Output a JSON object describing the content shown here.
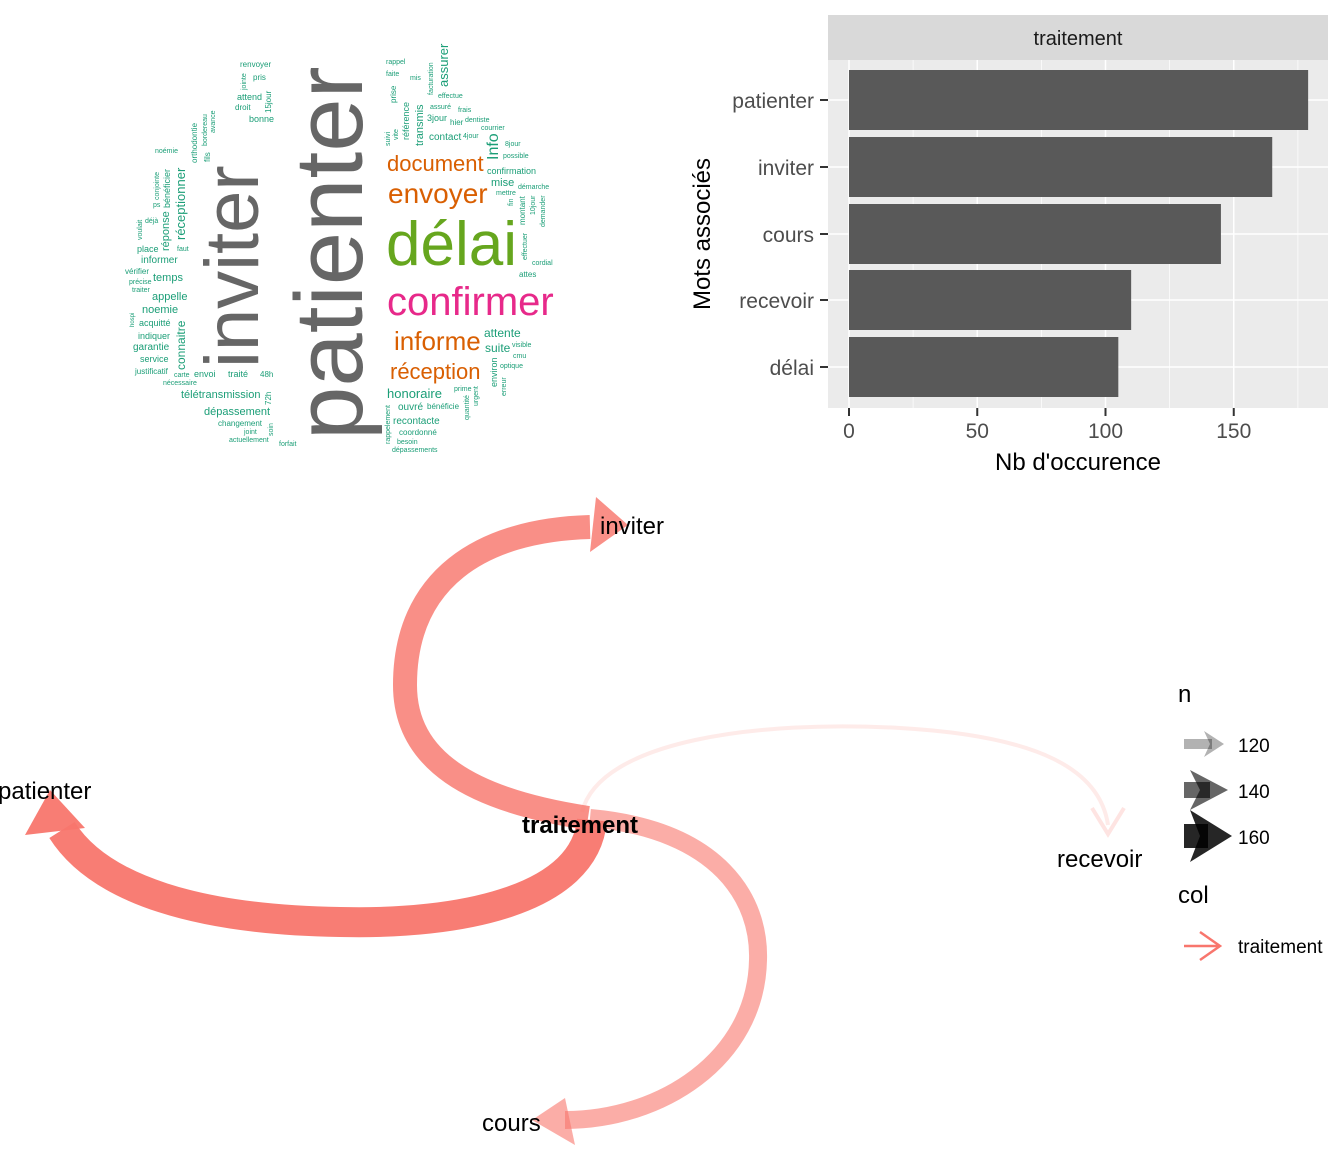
{
  "colors": {
    "teal": "#1b9e77",
    "orange": "#d95f02",
    "green": "#66a61e",
    "pink": "#e7298a",
    "gray": "#666666",
    "bar": "#595959",
    "edge": "#F8766D"
  },
  "wordcloud": {
    "words": [
      {
        "t": "patienter",
        "c": "gray"
      },
      {
        "t": "inviter",
        "c": "gray"
      },
      {
        "t": "délai",
        "c": "green"
      },
      {
        "t": "confirmer",
        "c": "pink"
      },
      {
        "t": "envoyer",
        "c": "orange"
      },
      {
        "t": "document",
        "c": "orange"
      },
      {
        "t": "informe",
        "c": "orange"
      },
      {
        "t": "réception",
        "c": "orange"
      },
      {
        "t": "renvoyer",
        "c": "teal"
      },
      {
        "t": "jointe",
        "c": "teal"
      },
      {
        "t": "pris",
        "c": "teal"
      },
      {
        "t": "15jour",
        "c": "teal"
      },
      {
        "t": "attend",
        "c": "teal"
      },
      {
        "t": "droit",
        "c": "teal"
      },
      {
        "t": "bonne",
        "c": "teal"
      },
      {
        "t": "avance",
        "c": "teal"
      },
      {
        "t": "bordereau",
        "c": "teal"
      },
      {
        "t": "orthodontie",
        "c": "teal"
      },
      {
        "t": "noémie",
        "c": "teal"
      },
      {
        "t": "réceptionner",
        "c": "teal"
      },
      {
        "t": "fils",
        "c": "teal"
      },
      {
        "t": "bénéficier",
        "c": "teal"
      },
      {
        "t": "conjointe",
        "c": "teal"
      },
      {
        "t": "réponse",
        "c": "teal"
      },
      {
        "t": "ps",
        "c": "teal"
      },
      {
        "t": "déjà",
        "c": "teal"
      },
      {
        "t": "voulait",
        "c": "teal"
      },
      {
        "t": "place",
        "c": "teal"
      },
      {
        "t": "informer",
        "c": "teal"
      },
      {
        "t": "temps",
        "c": "teal"
      },
      {
        "t": "vérifier",
        "c": "teal"
      },
      {
        "t": "précise",
        "c": "teal"
      },
      {
        "t": "appelle",
        "c": "teal"
      },
      {
        "t": "noemie",
        "c": "teal"
      },
      {
        "t": "connaitre",
        "c": "teal"
      },
      {
        "t": "traiter",
        "c": "teal"
      },
      {
        "t": "acquitté",
        "c": "teal"
      },
      {
        "t": "indiquer",
        "c": "teal"
      },
      {
        "t": "faut",
        "c": "teal"
      },
      {
        "t": "garantie",
        "c": "teal"
      },
      {
        "t": "hospi",
        "c": "teal"
      },
      {
        "t": "service",
        "c": "teal"
      },
      {
        "t": "carte",
        "c": "teal"
      },
      {
        "t": "envoi",
        "c": "teal"
      },
      {
        "t": "justificatif",
        "c": "teal"
      },
      {
        "t": "traité",
        "c": "teal"
      },
      {
        "t": "nécessaire",
        "c": "teal"
      },
      {
        "t": "télétransmission",
        "c": "teal"
      },
      {
        "t": "48h",
        "c": "teal"
      },
      {
        "t": "dépassement",
        "c": "teal"
      },
      {
        "t": "changement",
        "c": "teal"
      },
      {
        "t": "72h",
        "c": "teal"
      },
      {
        "t": "soin",
        "c": "teal"
      },
      {
        "t": "joint",
        "c": "teal"
      },
      {
        "t": "actuellement",
        "c": "teal"
      },
      {
        "t": "forfait",
        "c": "teal"
      },
      {
        "t": "rappel",
        "c": "teal"
      },
      {
        "t": "faite",
        "c": "teal"
      },
      {
        "t": "mis",
        "c": "teal"
      },
      {
        "t": "facturation",
        "c": "teal"
      },
      {
        "t": "prise",
        "c": "teal"
      },
      {
        "t": "référence",
        "c": "teal"
      },
      {
        "t": "effectue",
        "c": "teal"
      },
      {
        "t": "assuré",
        "c": "teal"
      },
      {
        "t": "frais",
        "c": "teal"
      },
      {
        "t": "transmis",
        "c": "teal"
      },
      {
        "t": "3jour",
        "c": "teal"
      },
      {
        "t": "dentiste",
        "c": "teal"
      },
      {
        "t": "assurer",
        "c": "teal"
      },
      {
        "t": "vite",
        "c": "teal"
      },
      {
        "t": "Info",
        "c": "teal"
      },
      {
        "t": "contact",
        "c": "teal"
      },
      {
        "t": "4jour",
        "c": "teal"
      },
      {
        "t": "confirmation",
        "c": "teal"
      },
      {
        "t": "mise",
        "c": "teal"
      },
      {
        "t": "hier",
        "c": "teal"
      },
      {
        "t": "possible",
        "c": "teal"
      },
      {
        "t": "8jour",
        "c": "teal"
      },
      {
        "t": "mettre",
        "c": "teal"
      },
      {
        "t": "courrier",
        "c": "teal"
      },
      {
        "t": "démarche",
        "c": "teal"
      },
      {
        "t": "montant",
        "c": "teal"
      },
      {
        "t": "fin",
        "c": "teal"
      },
      {
        "t": "10jour",
        "c": "teal"
      },
      {
        "t": "demander",
        "c": "teal"
      },
      {
        "t": "suivi",
        "c": "teal"
      },
      {
        "t": "effectuer",
        "c": "teal"
      },
      {
        "t": "attente",
        "c": "teal"
      },
      {
        "t": "suite",
        "c": "teal"
      },
      {
        "t": "attes",
        "c": "teal"
      },
      {
        "t": "cordial",
        "c": "teal"
      },
      {
        "t": "honoraire",
        "c": "teal"
      },
      {
        "t": "environ",
        "c": "teal"
      },
      {
        "t": "visible",
        "c": "teal"
      },
      {
        "t": "cmu",
        "c": "teal"
      },
      {
        "t": "optique",
        "c": "teal"
      },
      {
        "t": "prime",
        "c": "teal"
      },
      {
        "t": "erreur",
        "c": "teal"
      },
      {
        "t": "bénéficie",
        "c": "teal"
      },
      {
        "t": "ouvré",
        "c": "teal"
      },
      {
        "t": "recontacte",
        "c": "teal"
      },
      {
        "t": "quantité",
        "c": "teal"
      },
      {
        "t": "urgent",
        "c": "teal"
      },
      {
        "t": "coordonné",
        "c": "teal"
      },
      {
        "t": "besoin",
        "c": "teal"
      },
      {
        "t": "rappelement",
        "c": "teal"
      },
      {
        "t": "dépassements",
        "c": "teal"
      }
    ]
  },
  "chart_data": [
    {
      "type": "bar",
      "orientation": "horizontal",
      "facet_label": "traitement",
      "categories": [
        "patienter",
        "inviter",
        "cours",
        "recevoir",
        "délai"
      ],
      "values": [
        179,
        165,
        145,
        110,
        105
      ],
      "xlabel": "Nb d'occurence",
      "ylabel": "Mots associés",
      "xticks": [
        "0",
        "50",
        "100",
        "150"
      ],
      "xtick_values": [
        0,
        50,
        100,
        150
      ],
      "xlim": [
        -8,
        188
      ],
      "grid": true
    },
    {
      "type": "network",
      "center": "traitement",
      "edges": [
        {
          "to": "patienter",
          "n": 179
        },
        {
          "to": "inviter",
          "n": 165
        },
        {
          "to": "cours",
          "n": 145
        },
        {
          "to": "recevoir",
          "n": 110
        }
      ],
      "legend": {
        "n_title": "n",
        "n_levels": [
          "120",
          "140",
          "160"
        ],
        "col_title": "col",
        "col_levels": [
          "traitement"
        ]
      }
    }
  ]
}
